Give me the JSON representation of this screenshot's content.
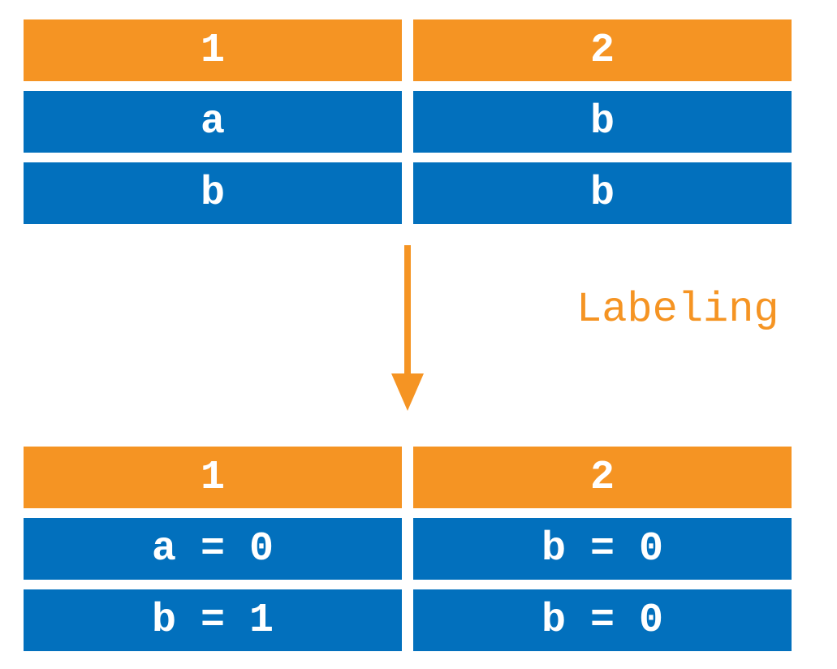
{
  "colors": {
    "header": "#F59423",
    "body": "#0270BD",
    "arrow": "#F59423",
    "caption": "#F59423",
    "cell_text": "#FFFFFF"
  },
  "top_table": {
    "headers": [
      "1",
      "2"
    ],
    "rows": [
      [
        "a",
        "b"
      ],
      [
        "b",
        "b"
      ]
    ]
  },
  "transition": {
    "label": "Labeling",
    "icon": "down-arrow-icon"
  },
  "bottom_table": {
    "headers": [
      "1",
      "2"
    ],
    "rows": [
      [
        "a = 0",
        "b = 0"
      ],
      [
        "b = 1",
        "b = 0"
      ]
    ]
  }
}
